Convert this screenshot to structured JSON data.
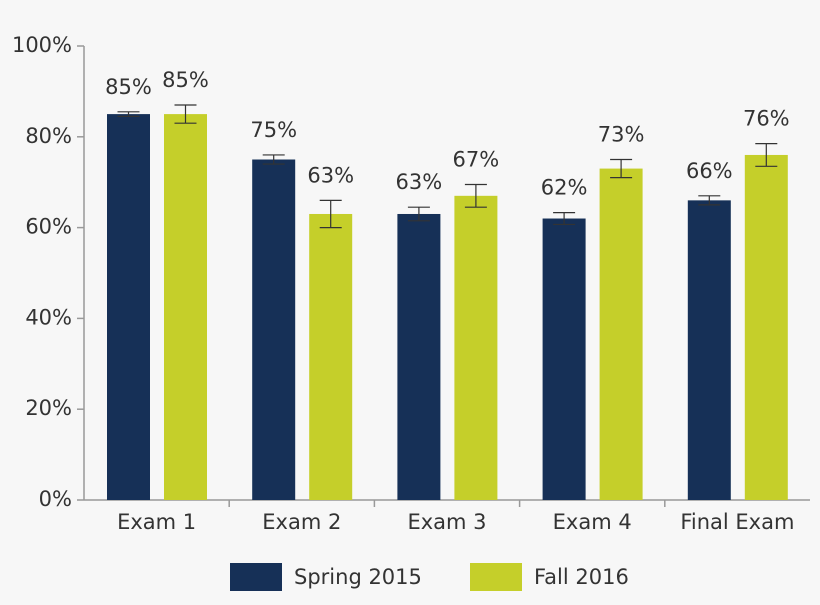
{
  "chart_data": {
    "type": "bar",
    "categories": [
      "Exam 1",
      "Exam 2",
      "Exam 3",
      "Exam 4",
      "Final Exam"
    ],
    "series": [
      {
        "name": "Spring 2015",
        "color": "#163057",
        "values": [
          85,
          75,
          63,
          62,
          66
        ],
        "value_labels": [
          "85%",
          "75%",
          "63%",
          "62%",
          "66%"
        ],
        "errors": [
          0.5,
          1,
          1.5,
          1.3,
          1
        ]
      },
      {
        "name": "Fall 2016",
        "color": "#c5cf2a",
        "values": [
          85,
          63,
          67,
          73,
          76
        ],
        "value_labels": [
          "85%",
          "63%",
          "67%",
          "73%",
          "76%"
        ],
        "errors": [
          2,
          3,
          2.5,
          2,
          2.5
        ]
      }
    ],
    "ylim": [
      0,
      100
    ],
    "yticks": [
      {
        "value": 0,
        "label": "0%"
      },
      {
        "value": 20,
        "label": "20%"
      },
      {
        "value": 40,
        "label": "40%"
      },
      {
        "value": 60,
        "label": "60%"
      },
      {
        "value": 80,
        "label": "80%"
      },
      {
        "value": 100,
        "label": "100%"
      }
    ],
    "legend": "bottom"
  }
}
